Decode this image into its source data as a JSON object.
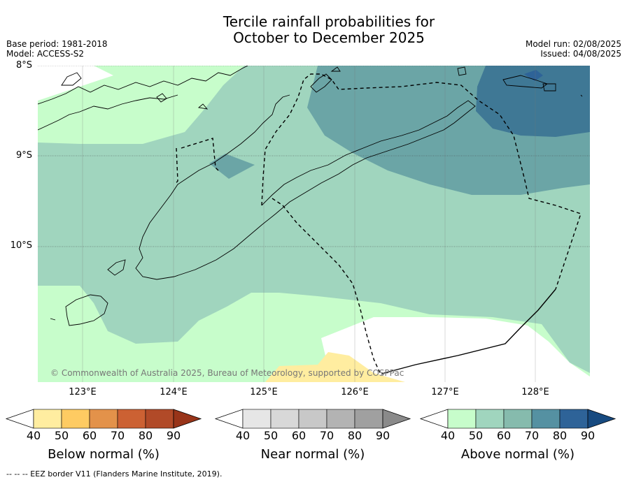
{
  "title": {
    "line1": "Tercile rainfall probabilities for",
    "line2": "October to December 2025"
  },
  "meta": {
    "base_period": "Base period: 1981-2018",
    "model": "Model: ACCESS-S2",
    "model_run": "Model run: 02/08/2025",
    "issued": "Issued: 04/08/2025"
  },
  "map": {
    "lat_labels": [
      "8°S",
      "9°S",
      "10°S"
    ],
    "lon_labels": [
      "123°E",
      "124°E",
      "125°E",
      "126°E",
      "127°E",
      "128°E"
    ],
    "copyright": "© Commonwealth of Australia 2025, Bureau of Meteorology, supported by COSPPac"
  },
  "colorbars": [
    {
      "label": "Below normal (%)",
      "ticks": [
        "40",
        "50",
        "60",
        "70",
        "80",
        "90"
      ],
      "colors": [
        "#ffffff",
        "#ffeda0",
        "#fecb62",
        "#e3924a",
        "#cc6133",
        "#b14a28",
        "#983419"
      ]
    },
    {
      "label": "Near normal (%)",
      "ticks": [
        "40",
        "50",
        "60",
        "70",
        "80",
        "90"
      ],
      "colors": [
        "#ffffff",
        "#e6e6e6",
        "#d8d8d8",
        "#c8c8c8",
        "#b3b3b3",
        "#a0a0a0",
        "#8a8a8a"
      ]
    },
    {
      "label": "Above normal (%)",
      "ticks": [
        "40",
        "50",
        "60",
        "70",
        "80",
        "90"
      ],
      "colors": [
        "#ffffff",
        "#c7fdcb",
        "#a0d5be",
        "#86bbad",
        "#5591a2",
        "#2e6398",
        "#174a80"
      ]
    }
  ],
  "footer": "-- -- -- EEZ border V11 (Flanders Marine Institute, 2019)."
}
